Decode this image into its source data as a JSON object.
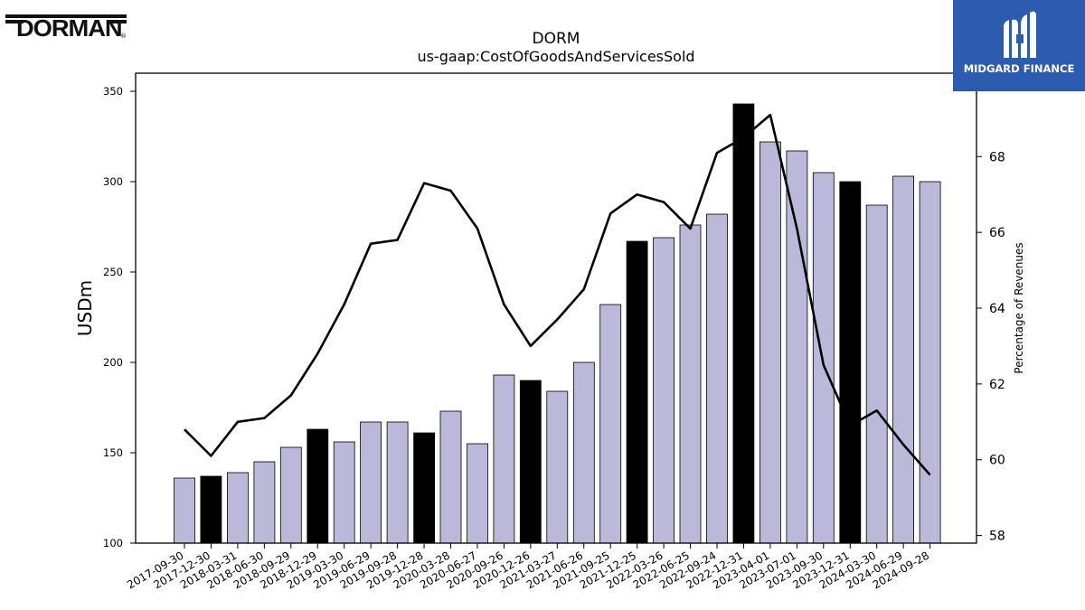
{
  "brand": {
    "company_logo_text": "DORMAN",
    "company_logo_mark": "®",
    "publisher_name": "MIDGARD FINANCE",
    "publisher_color": "#2d5bb0"
  },
  "chart_data": {
    "type": "bar",
    "title": "DORM",
    "subtitle": "us-gaap:CostOfGoodsAndServicesSold",
    "ylabel": "USDm",
    "y2label": "Percentage of Revenues",
    "ylim": [
      100,
      360
    ],
    "y2lim": [
      57.8,
      70.2
    ],
    "yticks": [
      100,
      150,
      200,
      250,
      300,
      350
    ],
    "y2ticks": [
      58,
      60,
      62,
      64,
      66,
      68
    ],
    "grid": false,
    "categories": [
      "2017-09-30",
      "2017-12-30",
      "2018-03-31",
      "2018-06-30",
      "2018-09-29",
      "2018-12-29",
      "2019-03-30",
      "2019-06-29",
      "2019-09-28",
      "2019-12-28",
      "2020-03-28",
      "2020-06-27",
      "2020-09-26",
      "2020-12-26",
      "2021-03-27",
      "2021-06-26",
      "2021-09-25",
      "2021-12-25",
      "2022-03-26",
      "2022-06-25",
      "2022-09-24",
      "2022-12-31",
      "2023-04-01",
      "2023-07-01",
      "2023-09-30",
      "2023-12-31",
      "2024-03-30",
      "2024-06-29",
      "2024-09-28"
    ],
    "series": [
      {
        "kind": "bar",
        "axis": "left",
        "values": [
          136,
          137,
          139,
          145,
          153,
          163,
          156,
          167,
          167,
          161,
          173,
          155,
          193,
          190,
          184,
          200,
          232,
          267,
          269,
          276,
          282,
          343,
          322,
          317,
          305,
          300,
          287,
          303,
          300
        ],
        "highlighted": [
          false,
          true,
          false,
          false,
          false,
          true,
          false,
          false,
          false,
          true,
          false,
          false,
          false,
          true,
          false,
          false,
          false,
          true,
          false,
          false,
          false,
          true,
          false,
          false,
          false,
          true,
          false,
          false,
          false
        ],
        "color": "#bcb8d9",
        "highlight_color": "#000000"
      },
      {
        "kind": "line",
        "axis": "right",
        "values": [
          60.8,
          60.1,
          61.0,
          61.1,
          61.7,
          62.8,
          64.1,
          65.7,
          65.8,
          67.3,
          67.1,
          66.1,
          64.1,
          63.0,
          63.7,
          64.5,
          66.5,
          67.0,
          66.8,
          66.1,
          68.1,
          68.5,
          69.1,
          66.1,
          62.5,
          60.9,
          61.3,
          60.4,
          59.6
        ],
        "color": "#000000"
      }
    ]
  }
}
